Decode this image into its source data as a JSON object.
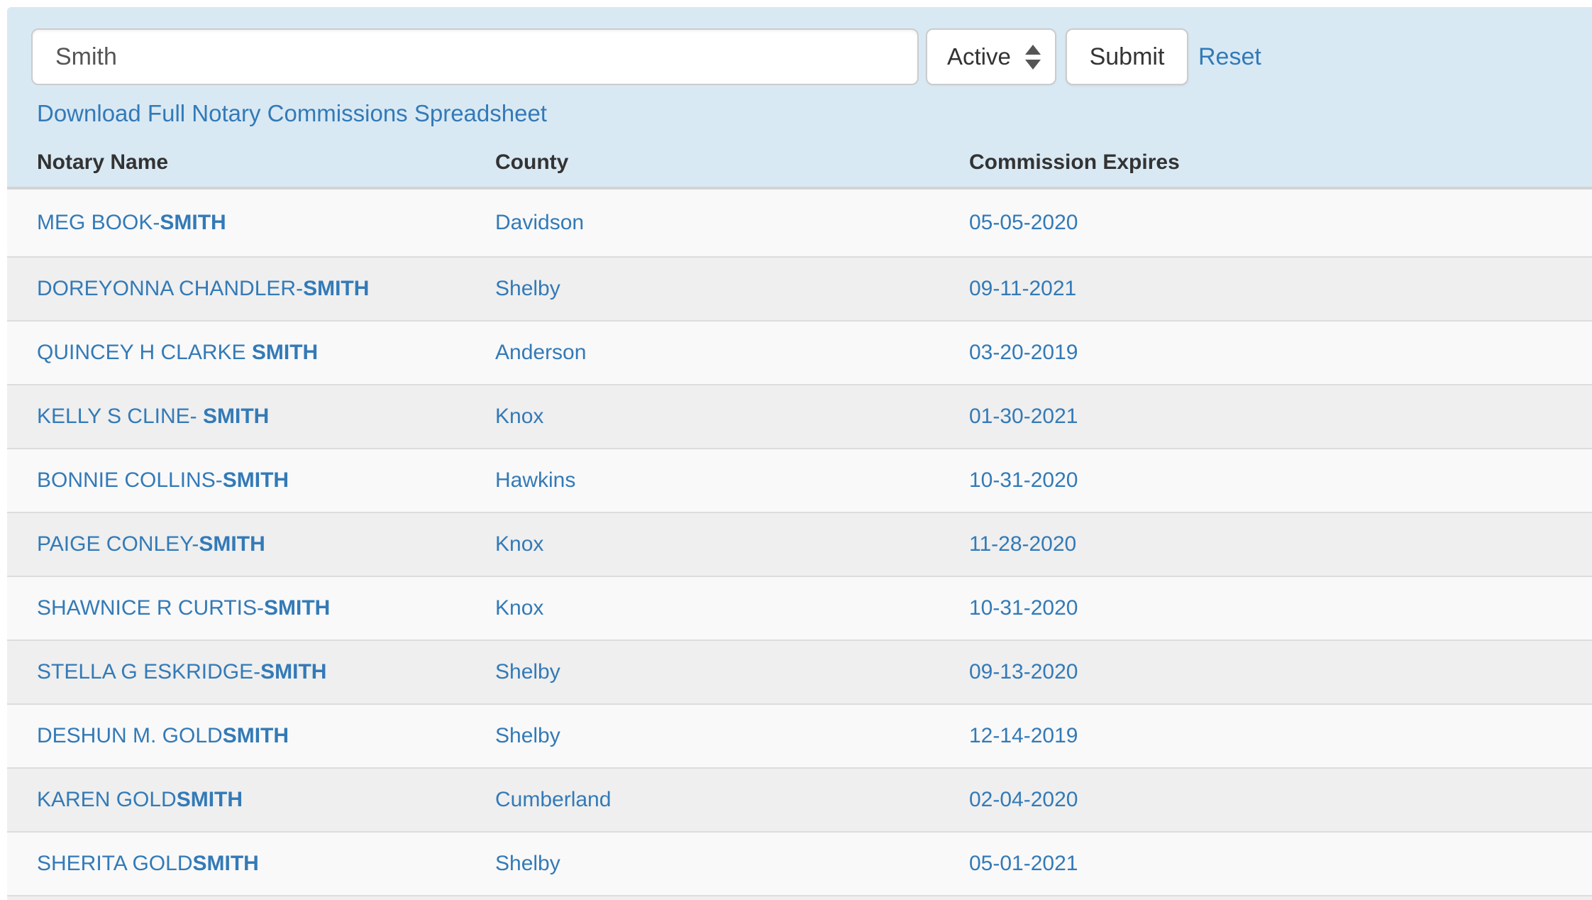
{
  "search": {
    "query_value": "Smith",
    "status_selected": "Active",
    "submit_label": "Submit",
    "reset_label": "Reset"
  },
  "download_link_label": "Download Full Notary Commissions Spreadsheet",
  "table": {
    "columns": [
      "Notary Name",
      "County",
      "Commission Expires"
    ],
    "rows": [
      {
        "name_prefix": "MEG BOOK-",
        "name_bold": "SMITH",
        "county": "Davidson",
        "expires": "05-05-2020"
      },
      {
        "name_prefix": "DOREYONNA CHANDLER-",
        "name_bold": "SMITH",
        "county": "Shelby",
        "expires": "09-11-2021"
      },
      {
        "name_prefix": "QUINCEY H CLARKE ",
        "name_bold": "SMITH",
        "county": "Anderson",
        "expires": "03-20-2019"
      },
      {
        "name_prefix": "KELLY S CLINE- ",
        "name_bold": "SMITH",
        "county": "Knox",
        "expires": "01-30-2021"
      },
      {
        "name_prefix": "BONNIE COLLINS-",
        "name_bold": "SMITH",
        "county": "Hawkins",
        "expires": "10-31-2020"
      },
      {
        "name_prefix": "PAIGE CONLEY-",
        "name_bold": "SMITH",
        "county": "Knox",
        "expires": "11-28-2020"
      },
      {
        "name_prefix": "SHAWNICE R CURTIS-",
        "name_bold": "SMITH",
        "county": "Knox",
        "expires": "10-31-2020"
      },
      {
        "name_prefix": "STELLA G ESKRIDGE-",
        "name_bold": "SMITH",
        "county": "Shelby",
        "expires": "09-13-2020"
      },
      {
        "name_prefix": "DESHUN M. GOLD",
        "name_bold": "SMITH",
        "county": "Shelby",
        "expires": "12-14-2019"
      },
      {
        "name_prefix": "KAREN GOLD",
        "name_bold": "SMITH",
        "county": "Cumberland",
        "expires": "02-04-2020"
      },
      {
        "name_prefix": "SHERITA GOLD",
        "name_bold": "SMITH",
        "county": "Shelby",
        "expires": "05-01-2021"
      }
    ]
  },
  "colors": {
    "panel_blue": "#d9e9f4",
    "link_blue": "#337ab7",
    "header_text": "#333333",
    "row_odd": "#f9f9f9",
    "row_even": "#efefef",
    "row_border": "#dddddd"
  }
}
